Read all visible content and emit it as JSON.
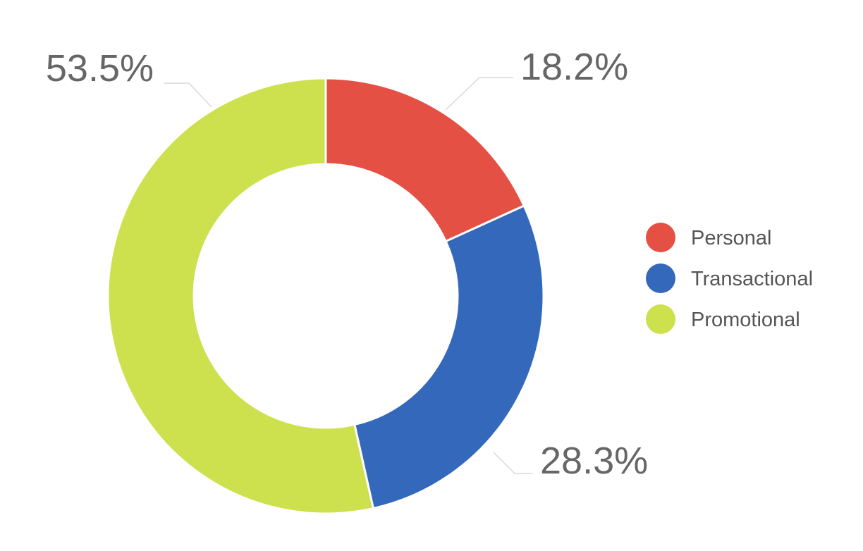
{
  "chart_data": {
    "type": "pie",
    "variant": "donut",
    "title": "",
    "legend_position": "right",
    "slices": [
      {
        "name": "Personal",
        "value": 18.2,
        "label": "18.2%",
        "color": "#e55045"
      },
      {
        "name": "Transactional",
        "value": 28.3,
        "label": "28.3%",
        "color": "#3468bb"
      },
      {
        "name": "Promotional",
        "value": 53.5,
        "label": "53.5%",
        "color": "#cde04e"
      }
    ]
  }
}
